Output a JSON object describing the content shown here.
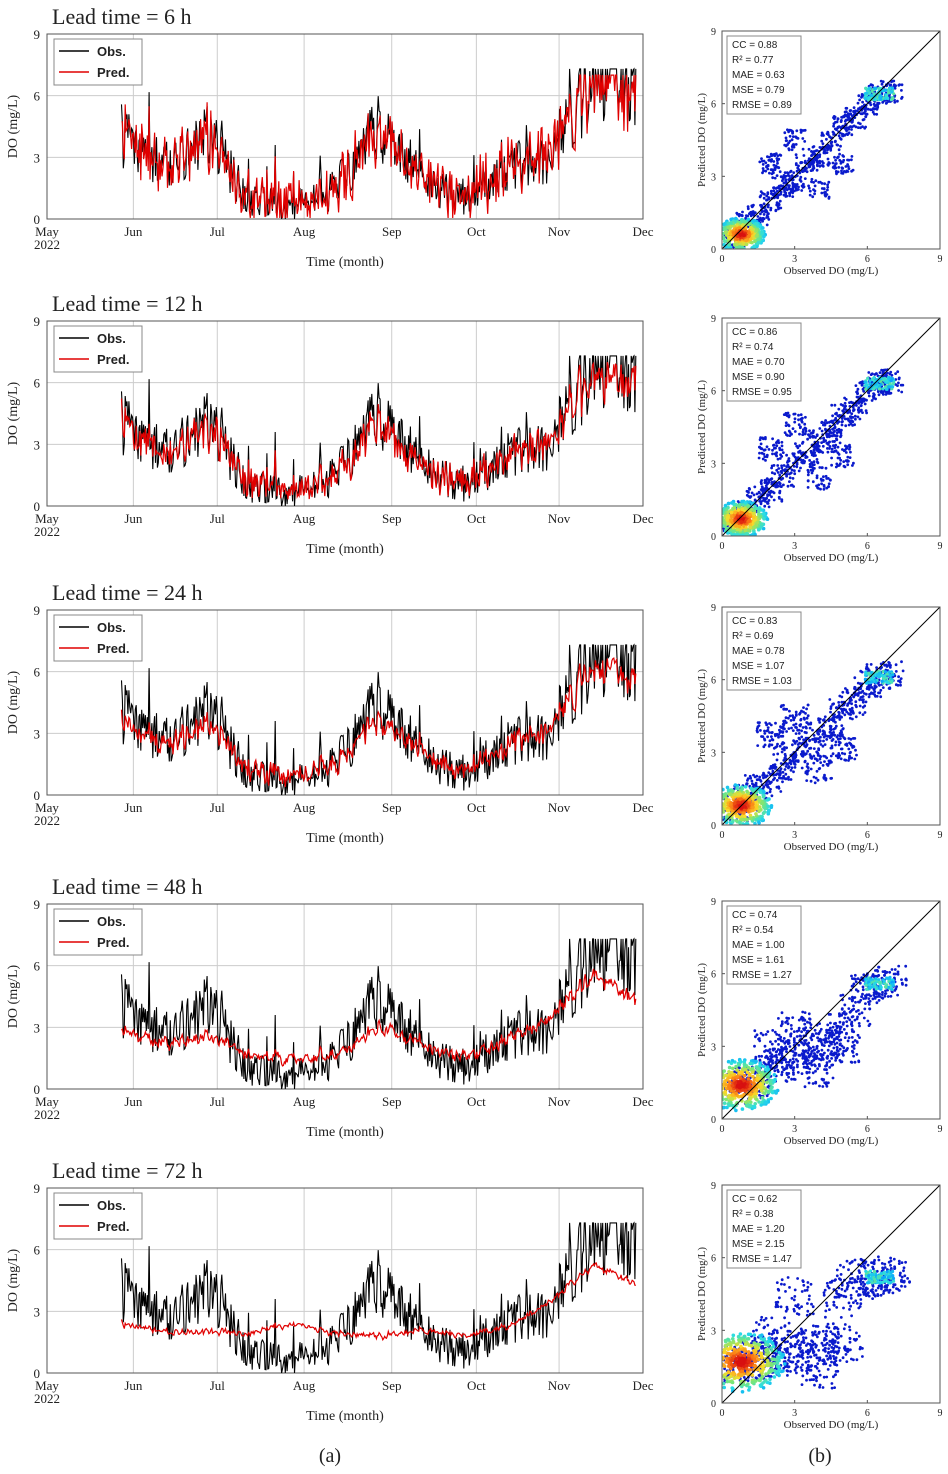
{
  "figure": {
    "panel_a_label": "(a)",
    "panel_b_label": "(b)",
    "colors": {
      "obs": "#000000",
      "pred": "#e00000",
      "grid": "#cccccc",
      "scatter_low": "#0a1acc",
      "scatter_high": "#d81010"
    }
  },
  "chart_data": [
    {
      "type": "line",
      "title": "Lead time = 6 h",
      "xlabel": "Time (month)",
      "ylabel": "DO (mg/L)",
      "ylim": [
        0,
        9
      ],
      "yticks": [
        "0",
        "3",
        "6",
        "9"
      ],
      "xticks": [
        "May\n2022",
        "Jun",
        "Jul",
        "Aug",
        "Sep",
        "Oct",
        "Nov",
        "Dec"
      ],
      "legend": [
        "Obs.",
        "Pred."
      ],
      "legend_position": "top-left",
      "grid": true,
      "x": [
        "Jun 1",
        "Jun 15",
        "Jul 1",
        "Jul 15",
        "Aug 1",
        "Aug 15",
        "Sep 1",
        "Sep 15",
        "Oct 1",
        "Oct 15",
        "Nov 1",
        "Nov 15",
        "Dec 1"
      ],
      "series": [
        {
          "name": "Obs.",
          "values": [
            4.0,
            2.5,
            4.2,
            0.8,
            0.6,
            1.5,
            4.5,
            2.0,
            0.8,
            2.5,
            3.0,
            6.8,
            6.5
          ]
        },
        {
          "name": "Pred.",
          "values": [
            3.9,
            2.4,
            4.0,
            0.9,
            0.7,
            1.4,
            4.2,
            1.9,
            0.9,
            2.4,
            3.2,
            6.7,
            6.2
          ]
        }
      ]
    },
    {
      "type": "line",
      "title": "Lead time = 12 h",
      "xlabel": "Time (month)",
      "ylabel": "DO (mg/L)",
      "ylim": [
        0,
        9
      ],
      "yticks": [
        "0",
        "3",
        "6",
        "9"
      ],
      "xticks": [
        "May\n2022",
        "Jun",
        "Jul",
        "Aug",
        "Sep",
        "Oct",
        "Nov",
        "Dec"
      ],
      "legend": [
        "Obs.",
        "Pred."
      ],
      "legend_position": "top-left",
      "grid": true,
      "x": [
        "Jun 1",
        "Jun 15",
        "Jul 1",
        "Jul 15",
        "Aug 1",
        "Aug 15",
        "Sep 1",
        "Sep 15",
        "Oct 1",
        "Oct 15",
        "Nov 1",
        "Nov 15",
        "Dec 1"
      ],
      "series": [
        {
          "name": "Obs.",
          "values": [
            4.0,
            2.5,
            4.2,
            0.8,
            0.6,
            1.5,
            4.5,
            2.0,
            0.8,
            2.5,
            3.0,
            6.8,
            6.5
          ]
        },
        {
          "name": "Pred.",
          "values": [
            3.8,
            2.4,
            3.8,
            1.0,
            0.8,
            1.4,
            4.0,
            1.9,
            1.0,
            2.4,
            3.2,
            6.5,
            6.0
          ]
        }
      ]
    },
    {
      "type": "line",
      "title": "Lead time = 24 h",
      "xlabel": "Time (month)",
      "ylabel": "DO (mg/L)",
      "ylim": [
        0,
        9
      ],
      "yticks": [
        "0",
        "3",
        "6",
        "9"
      ],
      "xticks": [
        "May\n2022",
        "Jun",
        "Jul",
        "Aug",
        "Sep",
        "Oct",
        "Nov",
        "Dec"
      ],
      "legend": [
        "Obs.",
        "Pred."
      ],
      "legend_position": "top-left",
      "grid": true,
      "x": [
        "Jun 1",
        "Jun 15",
        "Jul 1",
        "Jul 15",
        "Aug 1",
        "Aug 15",
        "Sep 1",
        "Sep 15",
        "Oct 1",
        "Oct 15",
        "Nov 1",
        "Nov 15",
        "Dec 1"
      ],
      "series": [
        {
          "name": "Obs.",
          "values": [
            4.0,
            2.5,
            4.2,
            0.8,
            0.6,
            1.5,
            4.5,
            2.0,
            0.8,
            2.5,
            3.0,
            6.8,
            6.5
          ]
        },
        {
          "name": "Pred.",
          "values": [
            3.5,
            2.3,
            3.6,
            1.1,
            0.9,
            1.4,
            3.8,
            2.0,
            1.1,
            2.4,
            3.3,
            6.3,
            5.7
          ]
        }
      ]
    },
    {
      "type": "line",
      "title": "Lead time = 48 h",
      "xlabel": "Time (month)",
      "ylabel": "DO (mg/L)",
      "ylim": [
        0,
        9
      ],
      "yticks": [
        "0",
        "3",
        "6",
        "9"
      ],
      "xticks": [
        "May\n2022",
        "Jun",
        "Jul",
        "Aug",
        "Sep",
        "Oct",
        "Nov",
        "Dec"
      ],
      "legend": [
        "Obs.",
        "Pred."
      ],
      "legend_position": "top-left",
      "grid": true,
      "x": [
        "Jun 1",
        "Jun 15",
        "Jul 1",
        "Jul 15",
        "Aug 1",
        "Aug 15",
        "Sep 1",
        "Sep 15",
        "Oct 1",
        "Oct 15",
        "Nov 1",
        "Nov 15",
        "Dec 1"
      ],
      "series": [
        {
          "name": "Obs.",
          "values": [
            4.0,
            2.5,
            4.2,
            0.8,
            0.6,
            1.5,
            4.5,
            2.0,
            0.8,
            2.5,
            3.0,
            6.8,
            6.5
          ]
        },
        {
          "name": "Pred.",
          "values": [
            2.7,
            2.2,
            2.6,
            1.6,
            1.4,
            1.6,
            3.0,
            2.1,
            1.5,
            2.4,
            3.4,
            5.6,
            4.4
          ]
        }
      ]
    },
    {
      "type": "line",
      "title": "Lead time = 72 h",
      "xlabel": "Time (month)",
      "ylabel": "DO (mg/L)",
      "ylim": [
        0,
        9
      ],
      "yticks": [
        "0",
        "3",
        "6",
        "9"
      ],
      "xticks": [
        "May\n2022",
        "Jun",
        "Jul",
        "Aug",
        "Sep",
        "Oct",
        "Nov",
        "Dec"
      ],
      "legend": [
        "Obs.",
        "Pred."
      ],
      "legend_position": "top-left",
      "grid": true,
      "x": [
        "Jun 1",
        "Jun 15",
        "Jul 1",
        "Jul 15",
        "Aug 1",
        "Aug 15",
        "Sep 1",
        "Sep 15",
        "Oct 1",
        "Oct 15",
        "Nov 1",
        "Nov 15",
        "Dec 1"
      ],
      "series": [
        {
          "name": "Obs.",
          "values": [
            4.0,
            2.5,
            4.2,
            0.8,
            0.6,
            1.5,
            4.5,
            2.0,
            0.8,
            2.5,
            3.0,
            6.8,
            6.5
          ]
        },
        {
          "name": "Pred.",
          "values": [
            2.3,
            2.0,
            2.0,
            1.9,
            2.4,
            1.9,
            1.8,
            2.1,
            1.8,
            2.2,
            3.5,
            5.3,
            4.3
          ]
        }
      ]
    },
    {
      "type": "scatter",
      "xlabel": "Observed DO (mg/L)",
      "ylabel": "Predicted DO (mg/L)",
      "xlim": [
        0,
        9
      ],
      "ylim": [
        0,
        9
      ],
      "xticks": [
        "0",
        "3",
        "6",
        "9"
      ],
      "yticks": [
        "0",
        "3",
        "6",
        "9"
      ],
      "reference_line": "1:1",
      "stats": [
        "CC = 0.88",
        "R² = 0.77",
        "MAE = 0.63",
        "MSE = 0.79",
        "RMSE = 0.89"
      ],
      "points": [
        [
          0.5,
          0.5
        ],
        [
          1.0,
          1.1
        ],
        [
          1.5,
          1.4
        ],
        [
          2.0,
          2.0
        ],
        [
          2.5,
          2.6
        ],
        [
          3.0,
          2.8
        ],
        [
          3.5,
          3.6
        ],
        [
          4.0,
          3.8
        ],
        [
          4.5,
          4.4
        ],
        [
          5.0,
          5.1
        ],
        [
          5.5,
          5.4
        ],
        [
          6.0,
          6.0
        ],
        [
          6.5,
          6.4
        ],
        [
          7.0,
          6.5
        ],
        [
          2.0,
          3.5
        ],
        [
          4.0,
          2.5
        ],
        [
          5.0,
          3.5
        ],
        [
          3.0,
          4.5
        ]
      ]
    },
    {
      "type": "scatter",
      "xlabel": "Observed DO (mg/L)",
      "ylabel": "Predicted DO (mg/L)",
      "xlim": [
        0,
        9
      ],
      "ylim": [
        0,
        9
      ],
      "xticks": [
        "0",
        "3",
        "6",
        "9"
      ],
      "yticks": [
        "0",
        "3",
        "6",
        "9"
      ],
      "reference_line": "1:1",
      "stats": [
        "CC = 0.86",
        "R² = 0.74",
        "MAE = 0.70",
        "MSE = 0.90",
        "RMSE = 0.95"
      ],
      "points": [
        [
          0.5,
          0.6
        ],
        [
          1.0,
          1.0
        ],
        [
          1.5,
          1.6
        ],
        [
          2.0,
          1.9
        ],
        [
          2.5,
          2.5
        ],
        [
          3.0,
          3.0
        ],
        [
          3.5,
          3.4
        ],
        [
          4.0,
          3.9
        ],
        [
          4.5,
          4.3
        ],
        [
          5.0,
          5.0
        ],
        [
          5.5,
          5.3
        ],
        [
          6.0,
          5.9
        ],
        [
          6.5,
          6.3
        ],
        [
          7.0,
          6.4
        ],
        [
          2.0,
          3.6
        ],
        [
          4.0,
          2.4
        ],
        [
          5.0,
          3.3
        ],
        [
          3.0,
          4.6
        ]
      ]
    },
    {
      "type": "scatter",
      "xlabel": "Observed DO (mg/L)",
      "ylabel": "Predicted DO (mg/L)",
      "xlim": [
        0,
        9
      ],
      "ylim": [
        0,
        9
      ],
      "xticks": [
        "0",
        "3",
        "6",
        "9"
      ],
      "yticks": [
        "0",
        "3",
        "6",
        "9"
      ],
      "reference_line": "1:1",
      "stats": [
        "CC = 0.83",
        "R² = 0.69",
        "MAE = 0.78",
        "MSE = 1.07",
        "RMSE = 1.03"
      ],
      "points": [
        [
          0.5,
          0.7
        ],
        [
          1.0,
          1.1
        ],
        [
          1.5,
          1.5
        ],
        [
          2.0,
          1.9
        ],
        [
          2.5,
          2.4
        ],
        [
          3.0,
          2.9
        ],
        [
          3.5,
          3.3
        ],
        [
          4.0,
          3.7
        ],
        [
          4.5,
          4.1
        ],
        [
          5.0,
          4.8
        ],
        [
          5.5,
          5.1
        ],
        [
          6.0,
          5.8
        ],
        [
          6.5,
          6.1
        ],
        [
          7.0,
          6.2
        ],
        [
          2.0,
          3.7
        ],
        [
          4.0,
          2.3
        ],
        [
          5.0,
          3.2
        ],
        [
          3.0,
          4.4
        ]
      ]
    },
    {
      "type": "scatter",
      "xlabel": "Observed DO (mg/L)",
      "ylabel": "Predicted DO (mg/L)",
      "xlim": [
        0,
        9
      ],
      "ylim": [
        0,
        9
      ],
      "xticks": [
        "0",
        "3",
        "6",
        "9"
      ],
      "yticks": [
        "0",
        "3",
        "6",
        "9"
      ],
      "reference_line": "1:1",
      "stats": [
        "CC = 0.74",
        "R² = 0.54",
        "MAE = 1.00",
        "MSE = 1.61",
        "RMSE = 1.27"
      ],
      "points": [
        [
          0.5,
          1.3
        ],
        [
          1.0,
          1.5
        ],
        [
          1.5,
          1.6
        ],
        [
          2.0,
          2.0
        ],
        [
          2.5,
          2.3
        ],
        [
          3.0,
          2.5
        ],
        [
          3.5,
          2.8
        ],
        [
          4.0,
          3.1
        ],
        [
          4.5,
          3.3
        ],
        [
          5.0,
          3.8
        ],
        [
          5.5,
          4.5
        ],
        [
          6.0,
          5.3
        ],
        [
          6.5,
          5.6
        ],
        [
          7.0,
          5.7
        ],
        [
          2.0,
          3.0
        ],
        [
          4.0,
          2.0
        ],
        [
          5.0,
          3.0
        ],
        [
          3.0,
          3.8
        ]
      ]
    },
    {
      "type": "scatter",
      "xlabel": "Observed DO (mg/L)",
      "ylabel": "Predicted DO (mg/L)",
      "xlim": [
        0,
        9
      ],
      "ylim": [
        0,
        9
      ],
      "xticks": [
        "0",
        "3",
        "6",
        "9"
      ],
      "yticks": [
        "0",
        "3",
        "6",
        "9"
      ],
      "reference_line": "1:1",
      "stats": [
        "CC = 0.62",
        "R² = 0.38",
        "MAE = 1.20",
        "MSE = 2.15",
        "RMSE = 1.47"
      ],
      "points": [
        [
          0.5,
          1.6
        ],
        [
          1.0,
          1.7
        ],
        [
          1.5,
          1.8
        ],
        [
          2.0,
          1.9
        ],
        [
          2.5,
          2.0
        ],
        [
          3.0,
          2.1
        ],
        [
          3.5,
          2.2
        ],
        [
          4.0,
          2.3
        ],
        [
          4.5,
          2.4
        ],
        [
          5.0,
          2.5
        ],
        [
          5.5,
          5.1
        ],
        [
          6.0,
          5.2
        ],
        [
          6.5,
          5.2
        ],
        [
          7.0,
          5.3
        ],
        [
          2.0,
          2.8
        ],
        [
          4.0,
          1.4
        ],
        [
          5.0,
          4.3
        ],
        [
          3.0,
          4.4
        ]
      ]
    }
  ]
}
